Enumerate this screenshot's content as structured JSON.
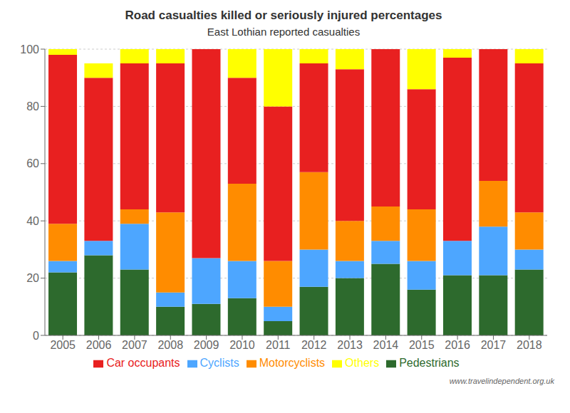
{
  "chart_data": {
    "type": "bar",
    "title": "Road casualties killed or seriously injured percentages",
    "subtitle": "East Lothian reported casualties",
    "categories": [
      "2005",
      "2006",
      "2007",
      "2008",
      "2009",
      "2010",
      "2011",
      "2012",
      "2013",
      "2014",
      "2015",
      "2016",
      "2017",
      "2018"
    ],
    "series": [
      {
        "name": "Pedestrians",
        "color": "#2d6a2d",
        "values": [
          22,
          28,
          23,
          10,
          11,
          13,
          5,
          17,
          20,
          25,
          16,
          21,
          21,
          23
        ]
      },
      {
        "name": "Cyclists",
        "color": "#4da6ff",
        "values": [
          4,
          5,
          16,
          5,
          16,
          13,
          5,
          13,
          6,
          8,
          10,
          12,
          17,
          7
        ]
      },
      {
        "name": "Motorcyclists",
        "color": "#ff8c00",
        "values": [
          13,
          0,
          5,
          28,
          0,
          27,
          16,
          27,
          14,
          12,
          18,
          0,
          16,
          13
        ]
      },
      {
        "name": "Car occupants",
        "color": "#e82020",
        "values": [
          59,
          57,
          51,
          52,
          73,
          37,
          54,
          38,
          53,
          55,
          42,
          64,
          46,
          52
        ]
      },
      {
        "name": "Others",
        "color": "#ffff00",
        "values": [
          2,
          5,
          5,
          5,
          0,
          10,
          20,
          5,
          7,
          0,
          14,
          3,
          0,
          5
        ]
      }
    ],
    "stacked": true,
    "ylim": [
      0,
      100
    ],
    "yticks": [
      0,
      20,
      40,
      60,
      80,
      100
    ],
    "grid": true,
    "legend": "bottom",
    "annotations": [
      "www.travelindependent.org.uk"
    ]
  }
}
